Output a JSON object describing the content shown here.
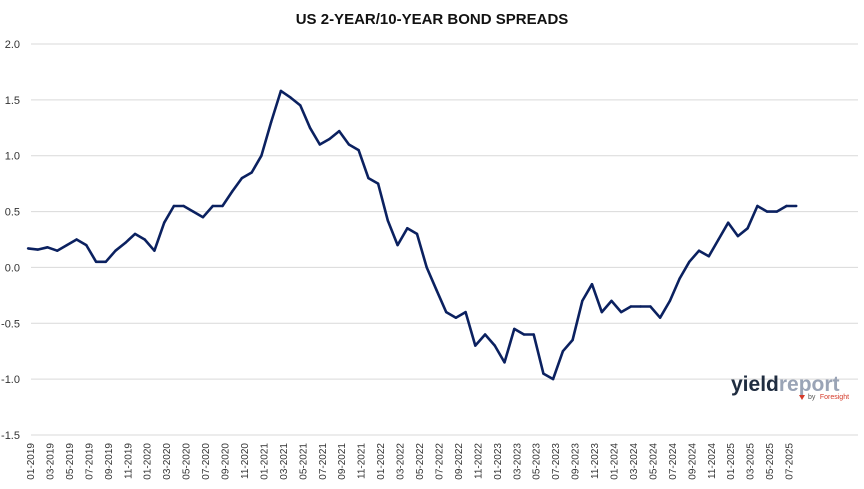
{
  "chart_data": {
    "type": "line",
    "title": "US 2-YEAR/10-YEAR BOND SPREADS",
    "xlabel": "",
    "ylabel": "",
    "ylim": [
      -1.5,
      2.0
    ],
    "yticks": [
      "2.0",
      "1.5",
      "1.0",
      "0.5",
      "0.0",
      "-0.5",
      "-1.0",
      "-1.5"
    ],
    "grid": "horizontal",
    "legend": "none",
    "xticks": [
      "01-2019",
      "03-2019",
      "05-2019",
      "07-2019",
      "09-2019",
      "11-2019",
      "01-2020",
      "03-2020",
      "05-2020",
      "07-2020",
      "09-2020",
      "11-2020",
      "01-2021",
      "03-2021",
      "05-2021",
      "07-2021",
      "09-2021",
      "11-2021",
      "01-2022",
      "03-2022",
      "05-2022",
      "07-2022",
      "09-2022",
      "11-2022",
      "01-2023",
      "03-2023",
      "05-2023",
      "07-2023",
      "09-2023",
      "11-2023",
      "01-2024",
      "03-2024",
      "05-2024",
      "07-2024",
      "09-2024",
      "11-2024",
      "01-2025",
      "03-2025",
      "05-2025",
      "07-2025"
    ],
    "series": [
      {
        "color": "#0b2160",
        "x": [
          "2019-01",
          "2019-02",
          "2019-03",
          "2019-04",
          "2019-05",
          "2019-06",
          "2019-07",
          "2019-08",
          "2019-09",
          "2019-10",
          "2019-11",
          "2019-12",
          "2020-01",
          "2020-02",
          "2020-03",
          "2020-04",
          "2020-05",
          "2020-06",
          "2020-07",
          "2020-08",
          "2020-09",
          "2020-10",
          "2020-11",
          "2020-12",
          "2021-01",
          "2021-02",
          "2021-03",
          "2021-04",
          "2021-05",
          "2021-06",
          "2021-07",
          "2021-08",
          "2021-09",
          "2021-10",
          "2021-11",
          "2021-12",
          "2022-01",
          "2022-02",
          "2022-03",
          "2022-04",
          "2022-05",
          "2022-06",
          "2022-07",
          "2022-08",
          "2022-09",
          "2022-10",
          "2022-11",
          "2022-12",
          "2023-01",
          "2023-02",
          "2023-03",
          "2023-04",
          "2023-05",
          "2023-06",
          "2023-07",
          "2023-08",
          "2023-09",
          "2023-10",
          "2023-11",
          "2023-12",
          "2024-01",
          "2024-02",
          "2024-03",
          "2024-04",
          "2024-05",
          "2024-06",
          "2024-07",
          "2024-08",
          "2024-09",
          "2024-10",
          "2024-11",
          "2024-12",
          "2025-01",
          "2025-02",
          "2025-03",
          "2025-04",
          "2025-05",
          "2025-06",
          "2025-07",
          "2025-08"
        ],
        "values": [
          0.17,
          0.16,
          0.18,
          0.15,
          0.2,
          0.25,
          0.2,
          0.05,
          0.05,
          0.15,
          0.22,
          0.3,
          0.25,
          0.15,
          0.4,
          0.55,
          0.55,
          0.5,
          0.45,
          0.55,
          0.55,
          0.68,
          0.8,
          0.85,
          1.0,
          1.3,
          1.58,
          1.52,
          1.45,
          1.25,
          1.1,
          1.15,
          1.22,
          1.1,
          1.05,
          0.8,
          0.75,
          0.42,
          0.2,
          0.35,
          0.3,
          0.0,
          -0.2,
          -0.4,
          -0.45,
          -0.4,
          -0.7,
          -0.6,
          -0.7,
          -0.85,
          -0.55,
          -0.6,
          -0.6,
          -0.95,
          -1.0,
          -0.75,
          -0.65,
          -0.3,
          -0.15,
          -0.4,
          -0.3,
          -0.4,
          -0.35,
          -0.35,
          -0.35,
          -0.45,
          -0.3,
          -0.1,
          0.05,
          0.15,
          0.1,
          0.25,
          0.4,
          0.28,
          0.35,
          0.55,
          0.5,
          0.5,
          0.55,
          0.55
        ]
      }
    ]
  },
  "branding": {
    "logo_yield": "yield",
    "logo_report": "report",
    "logo_by": "by",
    "logo_foresight": "Foresight",
    "colors": {
      "dark": "#202d40",
      "light": "#9aa4b6",
      "accent": "#d43a2a"
    }
  }
}
